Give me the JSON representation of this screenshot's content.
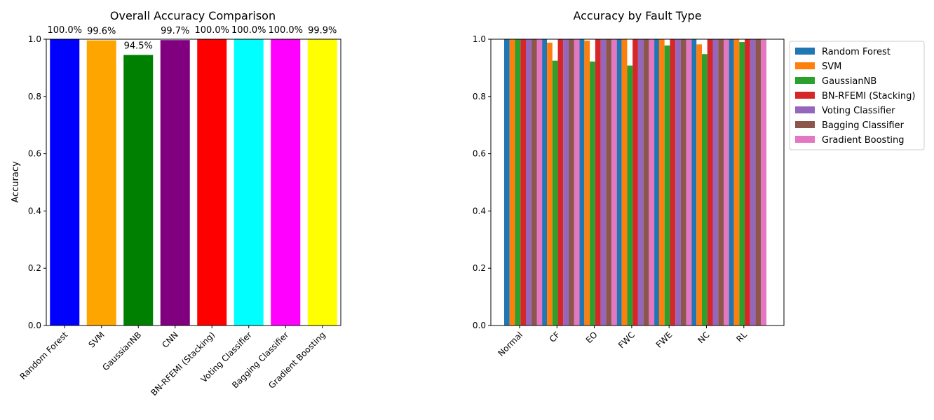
{
  "chart_data": [
    {
      "type": "bar",
      "title": "Overall Accuracy Comparison",
      "xlabel": "",
      "ylabel": "Accuracy",
      "ylim": [
        0,
        1
      ],
      "yticks": [
        "0.0",
        "0.2",
        "0.4",
        "0.6",
        "0.8",
        "1.0"
      ],
      "grid": false,
      "categories": [
        "Random Forest",
        "SVM",
        "GaussianNB",
        "CNN",
        "BN-RFEMI (Stacking)",
        "Voting Classifier",
        "Bagging Classifier",
        "Gradient Boosting"
      ],
      "values": [
        1.0,
        0.996,
        0.945,
        0.997,
        1.0,
        1.0,
        1.0,
        0.999
      ],
      "data_labels": [
        "100.0%",
        "99.6%",
        "94.5%",
        "99.7%",
        "100.0%",
        "100.0%",
        "100.0%",
        "99.9%"
      ],
      "colors": [
        "#0000ff",
        "#ffa500",
        "#008000",
        "#800080",
        "#ff0000",
        "#00ffff",
        "#ff00ff",
        "#ffff00"
      ]
    },
    {
      "type": "bar",
      "title": "Accuracy by Fault Type",
      "xlabel": "",
      "ylabel": "",
      "ylim": [
        0,
        1
      ],
      "yticks": [
        "0.0",
        "0.2",
        "0.4",
        "0.6",
        "0.8",
        "1.0"
      ],
      "grid": false,
      "legend_position": "outside-right",
      "categories": [
        "Normal",
        "CF",
        "EO",
        "FWC",
        "FWE",
        "NC",
        "RL"
      ],
      "series": [
        {
          "name": "Random Forest",
          "color": "#1f77b4",
          "values": [
            1.0,
            1.0,
            1.0,
            1.0,
            1.0,
            1.0,
            1.0
          ]
        },
        {
          "name": "SVM",
          "color": "#ff7f0e",
          "values": [
            1.0,
            0.988,
            0.995,
            1.0,
            1.0,
            0.982,
            1.0
          ]
        },
        {
          "name": "GaussianNB",
          "color": "#2ca02c",
          "values": [
            1.0,
            0.925,
            0.922,
            0.908,
            0.978,
            0.948,
            0.99
          ]
        },
        {
          "name": "BN-RFEMI (Stacking)",
          "color": "#d62728",
          "values": [
            1.0,
            1.0,
            1.0,
            1.0,
            1.0,
            1.0,
            1.0
          ]
        },
        {
          "name": "Voting Classifier",
          "color": "#9467bd",
          "values": [
            1.0,
            1.0,
            1.0,
            1.0,
            1.0,
            1.0,
            1.0
          ]
        },
        {
          "name": "Bagging Classifier",
          "color": "#8c564b",
          "values": [
            1.0,
            1.0,
            1.0,
            1.0,
            1.0,
            1.0,
            1.0
          ]
        },
        {
          "name": "Gradient Boosting",
          "color": "#e377c2",
          "values": [
            1.0,
            1.0,
            1.0,
            1.0,
            1.0,
            1.0,
            1.0
          ]
        }
      ]
    }
  ]
}
